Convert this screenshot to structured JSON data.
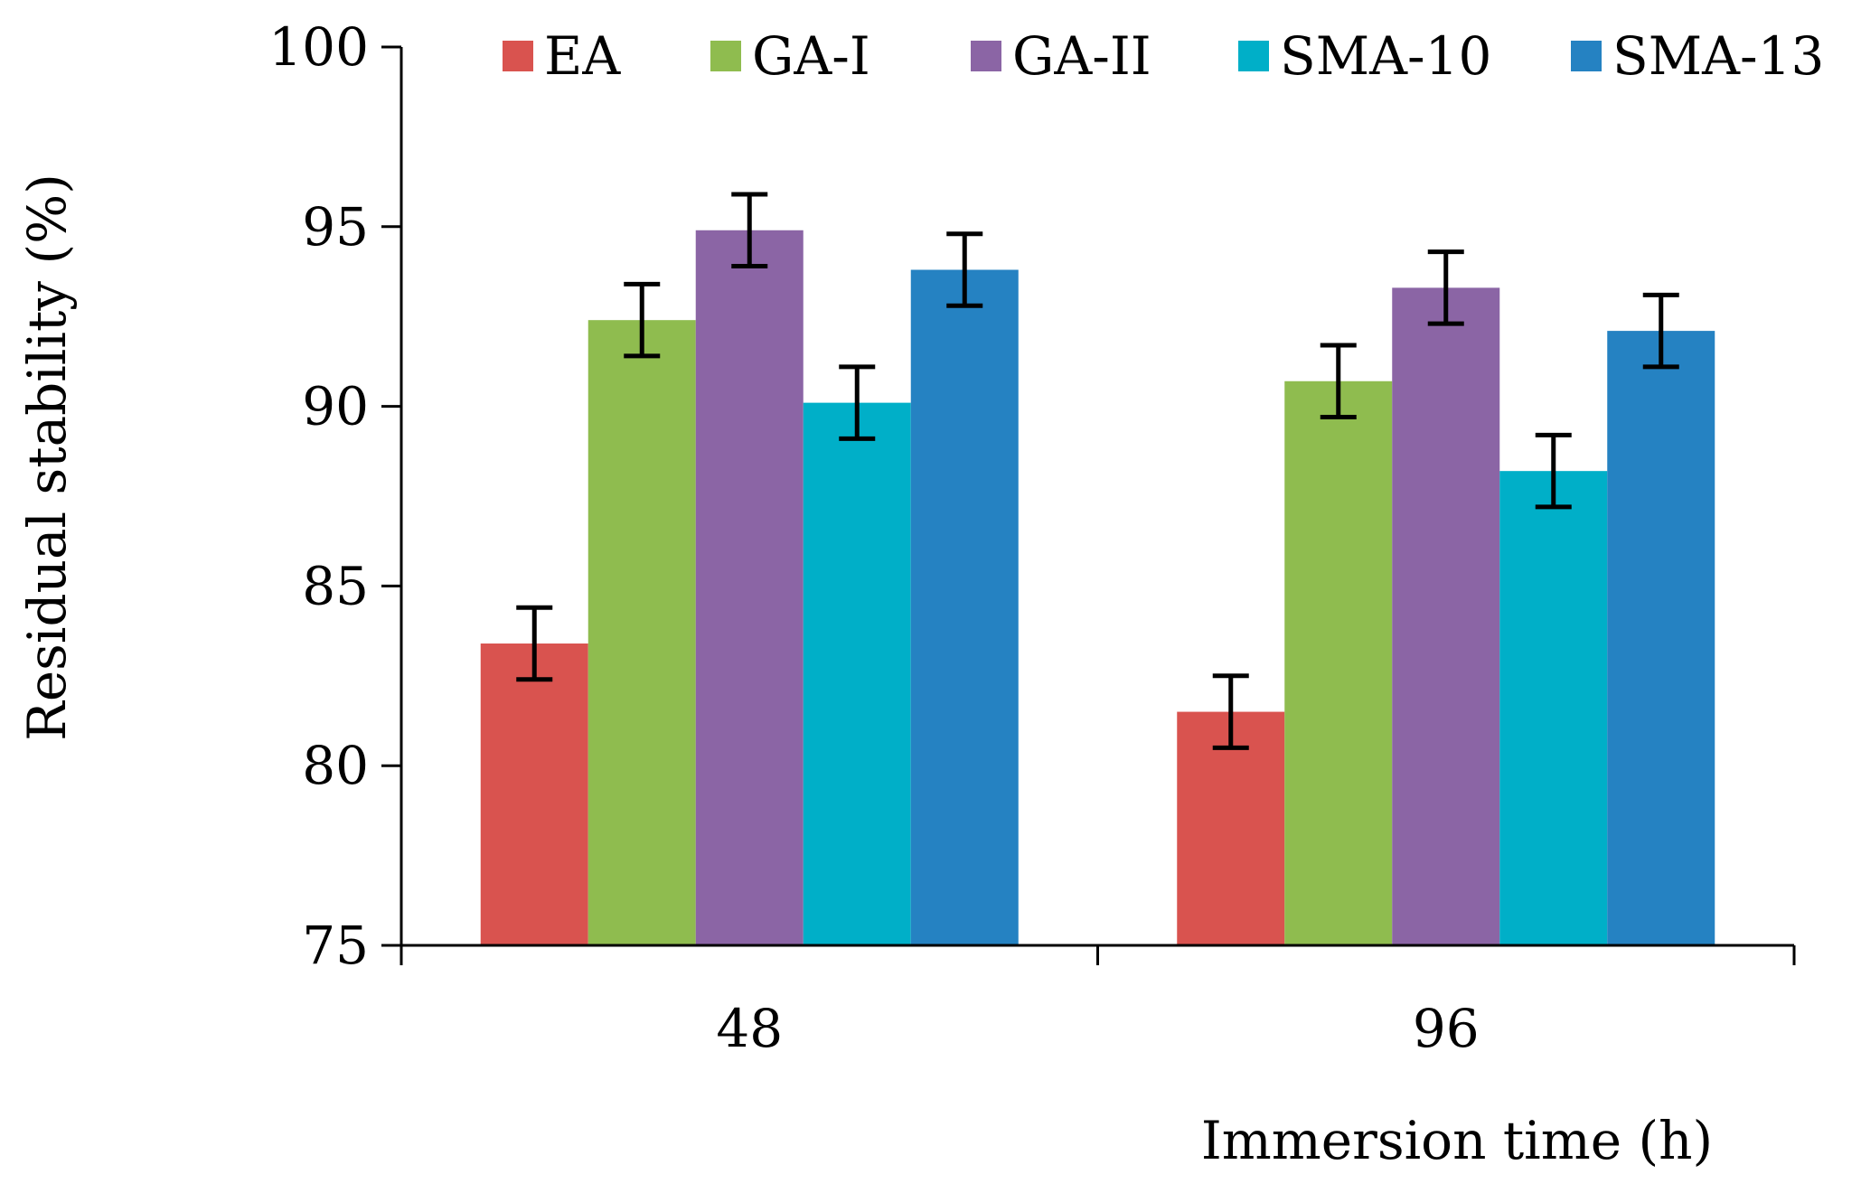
{
  "chart_data": {
    "type": "bar",
    "title": "",
    "xlabel": "Immersion time (h)",
    "ylabel": "Residual stability (%)",
    "ylim": [
      75,
      100
    ],
    "yticks": [
      "75",
      "80",
      "85",
      "90",
      "95",
      "100"
    ],
    "categories": [
      "48",
      "96"
    ],
    "legend_position": "top",
    "grid": false,
    "series": [
      {
        "name": "EA",
        "color": "#d9534f",
        "values": [
          83.4,
          81.5
        ],
        "errors": [
          1.0,
          1.0
        ]
      },
      {
        "name": "GA-I",
        "color": "#8fbc4f",
        "values": [
          92.4,
          90.7
        ],
        "errors": [
          1.0,
          1.0
        ]
      },
      {
        "name": "GA-II",
        "color": "#8b65a5",
        "values": [
          94.9,
          93.3
        ],
        "errors": [
          1.0,
          1.0
        ]
      },
      {
        "name": "SMA-10",
        "color": "#00afc8",
        "values": [
          90.1,
          88.2
        ],
        "errors": [
          1.0,
          1.0
        ]
      },
      {
        "name": "SMA-13",
        "color": "#2582c2",
        "values": [
          93.8,
          92.1
        ],
        "errors": [
          1.0,
          1.0
        ]
      }
    ]
  }
}
